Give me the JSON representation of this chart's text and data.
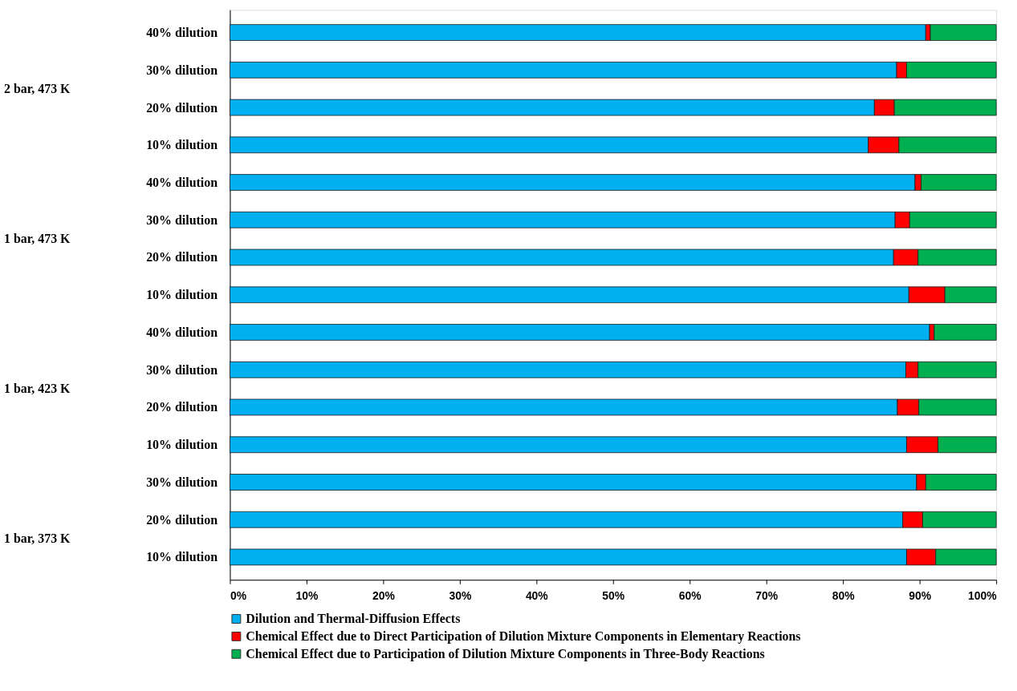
{
  "chart_data": {
    "type": "bar",
    "orientation": "horizontal",
    "stacked": true,
    "categories": [
      "40% dilution",
      "30% dilution",
      "20% dilution",
      "10% dilution",
      "40% dilution",
      "30% dilution",
      "20% dilution",
      "10% dilution",
      "40% dilution",
      "30% dilution",
      "20% dilution",
      "10% dilution",
      "30% dilution",
      "20% dilution",
      "10% dilution"
    ],
    "series": [
      {
        "name": "Dilution and Thermal-Diffusion Effects",
        "color": "#00b0f0",
        "values": [
          90.8,
          87.0,
          84.1,
          83.3,
          89.4,
          86.8,
          86.6,
          88.6,
          91.3,
          88.2,
          87.1,
          88.3,
          89.6,
          87.8,
          88.3
        ]
      },
      {
        "name": "Chemical Effect due to Direct Participation of Dilution Mixture Components in Elementary Reactions",
        "color": "#ff0000",
        "values": [
          0.6,
          1.3,
          2.6,
          4.0,
          0.8,
          1.9,
          3.2,
          4.7,
          0.6,
          1.6,
          2.8,
          4.1,
          1.2,
          2.6,
          3.8
        ]
      },
      {
        "name": "Chemical Effect due to Participation of Dilution Mixture Components in Three-Body Reactions",
        "color": "#00b050",
        "values": [
          8.6,
          11.7,
          13.3,
          12.7,
          9.8,
          11.3,
          10.2,
          6.7,
          8.1,
          10.2,
          10.1,
          7.6,
          9.2,
          9.6,
          7.9
        ]
      }
    ],
    "xlim": [
      0,
      100
    ],
    "xticks": [
      {
        "value": 0,
        "label": "0%"
      },
      {
        "value": 10,
        "label": "10%"
      },
      {
        "value": 20,
        "label": "20%"
      },
      {
        "value": 30,
        "label": "30%"
      },
      {
        "value": 40,
        "label": "40%"
      },
      {
        "value": 50,
        "label": "50%"
      },
      {
        "value": 60,
        "label": "60%"
      },
      {
        "value": 70,
        "label": "70%"
      },
      {
        "value": 80,
        "label": "80%"
      },
      {
        "value": 90,
        "label": "90%"
      },
      {
        "value": 100,
        "label": "100%"
      }
    ],
    "annotations": [
      "2 bar, 473 K",
      "1 bar, 473 K",
      "1 bar, 423 K",
      "1 bar, 373 K"
    ],
    "grid": false,
    "legend": "bottom left"
  }
}
